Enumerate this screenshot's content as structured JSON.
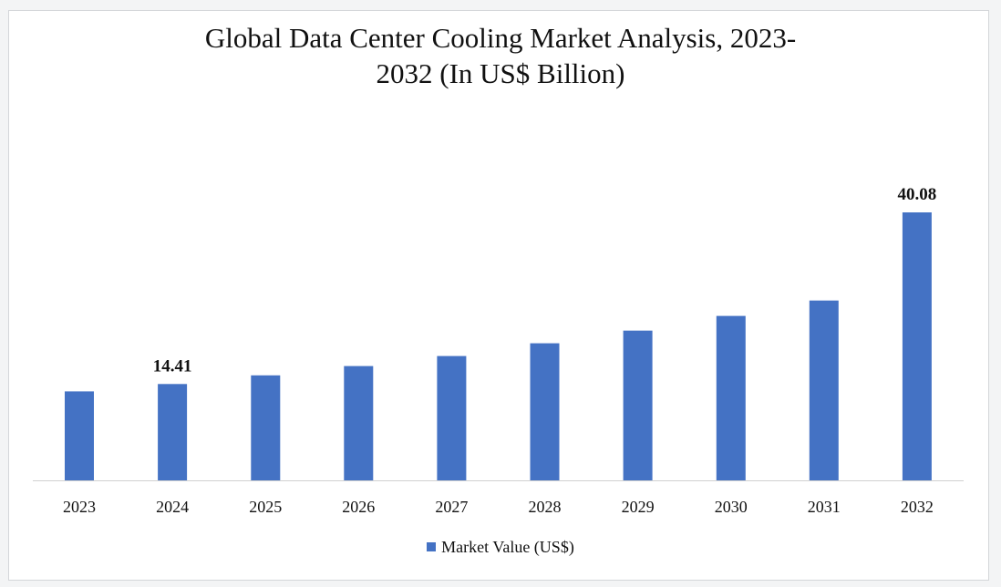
{
  "chart_data": {
    "type": "bar",
    "title": "Global Data Center Cooling Market Analysis, 2023-2032 (In US$ Billion)",
    "title_lines": [
      "Global Data Center Cooling Market Analysis, 2023-",
      "2032 (In US$ Billion)"
    ],
    "categories": [
      "2023",
      "2024",
      "2025",
      "2026",
      "2027",
      "2028",
      "2029",
      "2030",
      "2031",
      "2032"
    ],
    "series": [
      {
        "name": "Market Value (US$)",
        "values": [
          13.3,
          14.41,
          15.7,
          17.1,
          18.6,
          20.5,
          22.4,
          24.6,
          26.9,
          40.08
        ]
      }
    ],
    "data_labels": [
      {
        "index": 1,
        "text": "14.41"
      },
      {
        "index": 9,
        "text": "40.08"
      }
    ],
    "bar_color": "#4472c4",
    "axis_color": "#d0d0d0",
    "ylim": [
      0,
      40.08
    ],
    "y_axis_visible": false,
    "grid": false,
    "legend_position": "bottom-center",
    "xlabel": "",
    "ylabel": ""
  }
}
